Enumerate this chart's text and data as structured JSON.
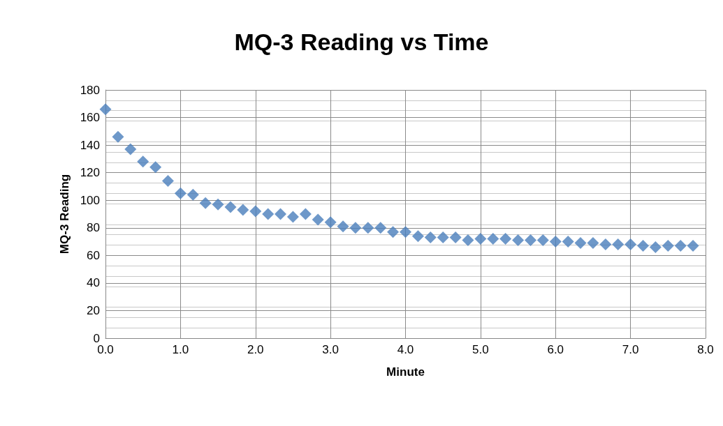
{
  "chart_data": {
    "type": "scatter",
    "title": "MQ-3 Reading vs Time",
    "xlabel": "Minute",
    "ylabel": "MQ-3 Reading",
    "x": [
      0,
      0.167,
      0.333,
      0.5,
      0.667,
      0.833,
      1,
      1.167,
      1.333,
      1.5,
      1.667,
      1.833,
      2,
      2.167,
      2.333,
      2.5,
      2.667,
      2.833,
      3,
      3.167,
      3.333,
      3.5,
      3.667,
      3.833,
      4,
      4.167,
      4.333,
      4.5,
      4.667,
      4.833,
      5,
      5.167,
      5.333,
      5.5,
      5.667,
      5.833,
      6,
      6.167,
      6.333,
      6.5,
      6.667,
      6.833,
      7,
      7.167,
      7.333,
      7.5,
      7.667,
      7.833
    ],
    "series": [
      {
        "color": "#4a7ebb",
        "values": [
          166,
          146,
          137,
          128,
          124,
          114,
          105,
          104,
          98,
          97,
          95,
          93,
          92,
          90,
          90,
          88,
          90,
          86,
          84,
          81,
          80,
          80,
          80,
          77,
          77,
          74,
          73,
          73,
          73,
          71,
          72,
          72,
          72,
          71,
          71,
          71,
          70,
          70,
          69,
          69,
          68,
          68,
          68,
          67,
          66,
          67,
          67,
          67
        ]
      }
    ],
    "xlim": [
      0,
      8
    ],
    "xticks": [
      {
        "value": 0,
        "label": "0.0"
      },
      {
        "value": 1,
        "label": "1.0"
      },
      {
        "value": 2,
        "label": "2.0"
      },
      {
        "value": 3,
        "label": "3.0"
      },
      {
        "value": 4,
        "label": "4.0"
      },
      {
        "value": 5,
        "label": "5.0"
      },
      {
        "value": 6,
        "label": "6.0"
      },
      {
        "value": 7,
        "label": "7.0"
      },
      {
        "value": 8,
        "label": "8.0"
      }
    ],
    "ylim": [
      0,
      180
    ],
    "yticks": [
      0,
      20,
      40,
      60,
      80,
      100,
      120,
      140,
      160,
      180
    ],
    "grid": true,
    "marker": "diamond"
  }
}
